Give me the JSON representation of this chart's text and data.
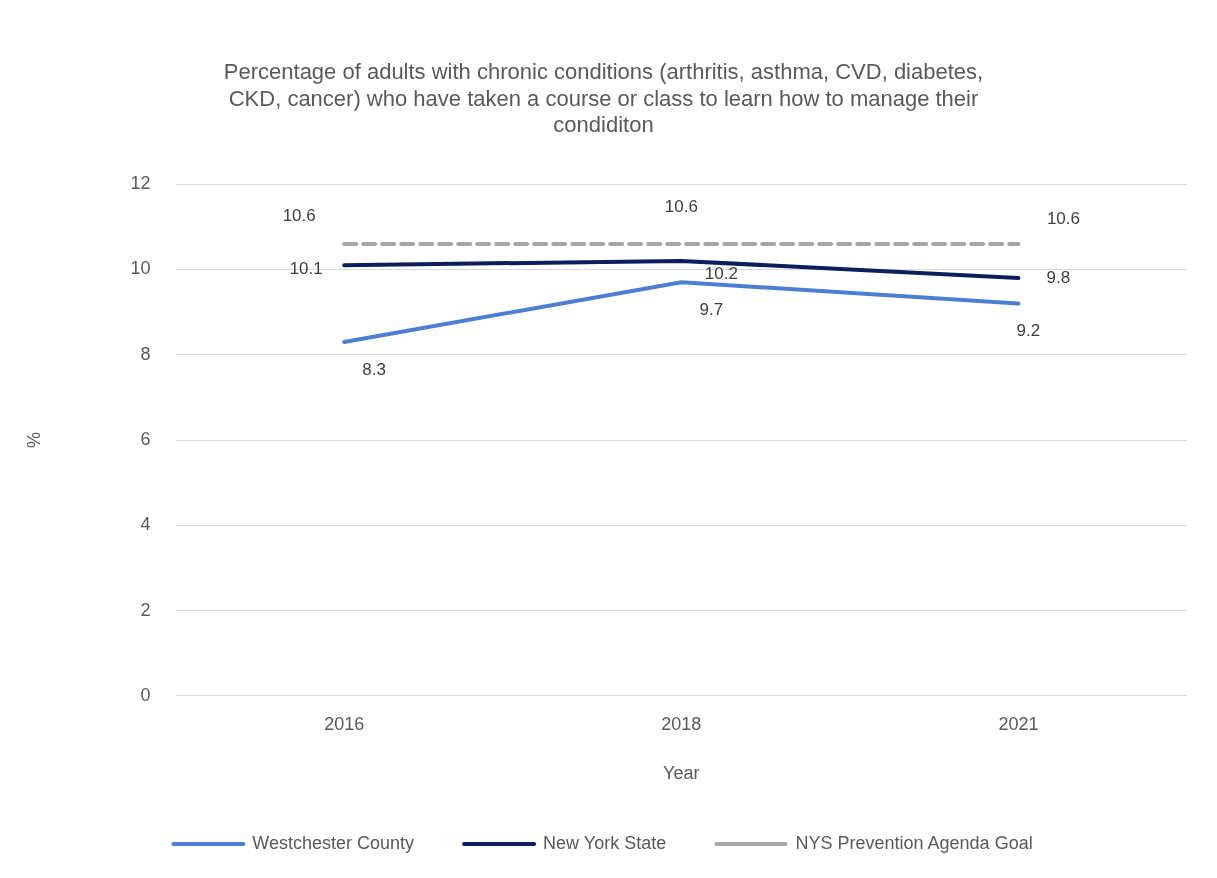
{
  "chart_data": {
    "type": "line",
    "title": "Percentage of adults with chronic conditions (arthritis, asthma, CVD, diabetes,\nCKD, cancer) who have taken a course or class to learn how to manage their\ncondiditon",
    "xlabel": "Year",
    "ylabel": "%",
    "categories": [
      "2016",
      "2018",
      "2021"
    ],
    "series": [
      {
        "name": "Westchester County",
        "color": "#4a7fd4",
        "values": [
          8.3,
          9.7,
          9.2
        ]
      },
      {
        "name": "New York State",
        "color": "#0b1f5c",
        "values": [
          10.1,
          10.2,
          9.8
        ]
      },
      {
        "name": "NYS Prevention Agenda Goal",
        "color": "#a6a6a6",
        "values": [
          10.6,
          10.6,
          10.6
        ],
        "line_style": "dashed"
      }
    ],
    "ylim": [
      0,
      12
    ],
    "yticks": [
      0,
      2,
      4,
      6,
      8,
      10,
      12
    ],
    "grid": "y",
    "legend": "bottom",
    "data_labels": true,
    "marker": "none",
    "line_style": "solid"
  }
}
